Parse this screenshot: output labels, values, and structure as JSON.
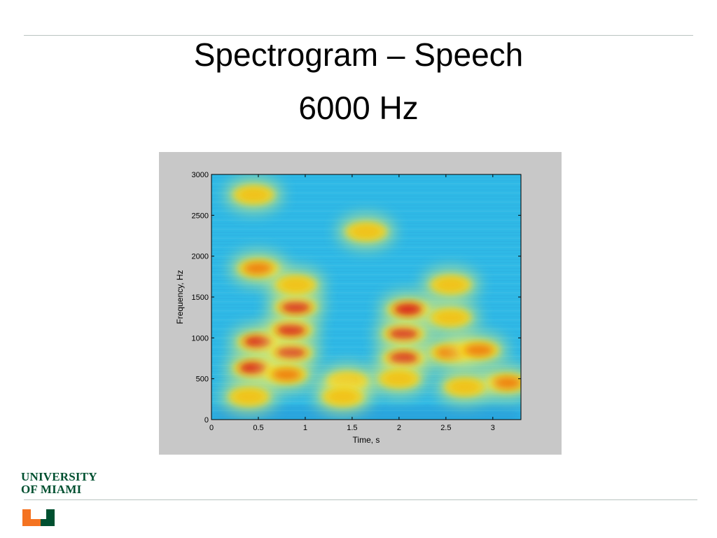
{
  "slide": {
    "title_line1": "Spectrogram – Speech",
    "title_line2": "6000 Hz"
  },
  "logo": {
    "line1": "UNIVERSITY",
    "line2": "OF MIAMI",
    "colors": {
      "green": "#005030",
      "orange": "#f47321"
    }
  },
  "chart_data": {
    "type": "heatmap",
    "title": "",
    "xlabel": "Time, s",
    "ylabel": "Frequency, Hz",
    "xlim": [
      0,
      3.3
    ],
    "ylim": [
      0,
      3000
    ],
    "x_ticks": [
      0,
      0.5,
      1,
      1.5,
      2,
      2.5,
      3
    ],
    "y_ticks": [
      0,
      500,
      1000,
      1500,
      2000,
      2500,
      3000
    ],
    "x_tick_labels": [
      "0",
      "0.5",
      "1",
      "1.5",
      "2",
      "2.5",
      "3"
    ],
    "y_tick_labels": [
      "0",
      "500",
      "1000",
      "1500",
      "2000",
      "2500",
      "3000"
    ],
    "colormap": "jet",
    "background_color": "#2fb9e6",
    "energy_regions": [
      {
        "t": 0.5,
        "f": 950,
        "intensity": 1.0
      },
      {
        "t": 0.45,
        "f": 630,
        "intensity": 0.95
      },
      {
        "t": 0.5,
        "f": 1850,
        "intensity": 0.85
      },
      {
        "t": 0.45,
        "f": 2750,
        "intensity": 0.8
      },
      {
        "t": 0.85,
        "f": 820,
        "intensity": 1.0
      },
      {
        "t": 0.85,
        "f": 1100,
        "intensity": 0.95
      },
      {
        "t": 0.9,
        "f": 1380,
        "intensity": 0.95
      },
      {
        "t": 0.9,
        "f": 1650,
        "intensity": 0.8
      },
      {
        "t": 0.8,
        "f": 550,
        "intensity": 0.85
      },
      {
        "t": 0.4,
        "f": 280,
        "intensity": 0.8
      },
      {
        "t": 1.45,
        "f": 470,
        "intensity": 0.8
      },
      {
        "t": 1.4,
        "f": 280,
        "intensity": 0.7
      },
      {
        "t": 1.65,
        "f": 2300,
        "intensity": 0.75
      },
      {
        "t": 2.05,
        "f": 1050,
        "intensity": 1.0
      },
      {
        "t": 2.05,
        "f": 750,
        "intensity": 0.95
      },
      {
        "t": 2.1,
        "f": 1350,
        "intensity": 0.95
      },
      {
        "t": 2.0,
        "f": 500,
        "intensity": 0.8
      },
      {
        "t": 2.55,
        "f": 820,
        "intensity": 0.85
      },
      {
        "t": 2.55,
        "f": 1250,
        "intensity": 0.75
      },
      {
        "t": 2.55,
        "f": 1650,
        "intensity": 0.7
      },
      {
        "t": 2.85,
        "f": 850,
        "intensity": 0.85
      },
      {
        "t": 3.15,
        "f": 450,
        "intensity": 0.85
      },
      {
        "t": 2.7,
        "f": 400,
        "intensity": 0.8
      }
    ]
  }
}
